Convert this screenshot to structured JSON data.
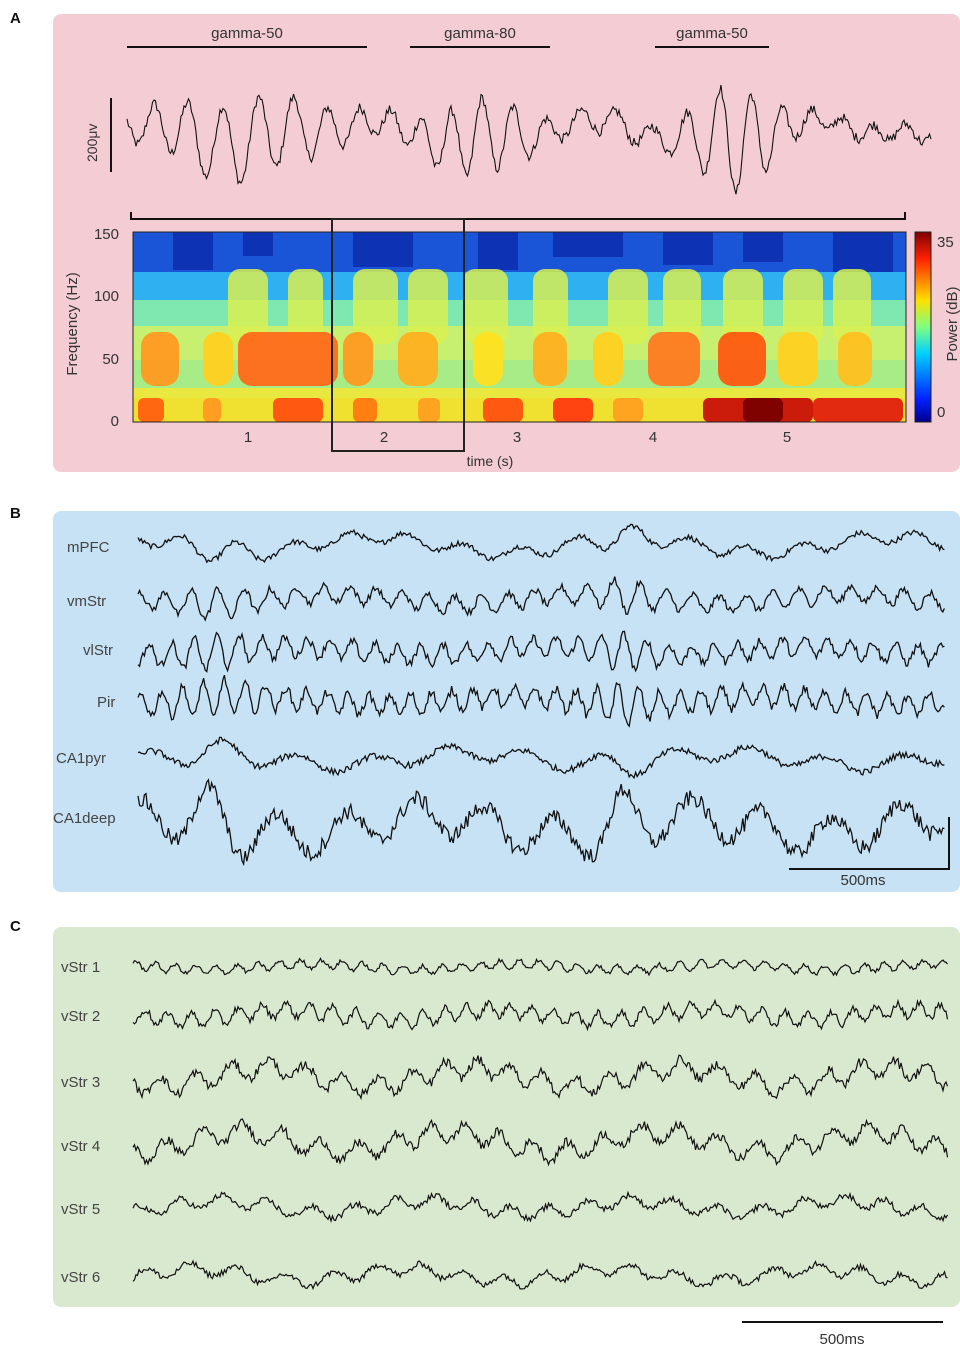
{
  "panel_a": {
    "label": "A",
    "bg": "#f4cdd4",
    "segments": [
      {
        "label": "gamma-50"
      },
      {
        "label": "gamma-80"
      },
      {
        "label": "gamma-50"
      }
    ],
    "scale_label": "200μv",
    "spectrogram": {
      "ylabel": "Frequency (Hz)",
      "xlabel": "time (s)",
      "yticks": [
        "150",
        "100",
        "50",
        "0"
      ],
      "xticks": [
        "1",
        "2",
        "3",
        "4",
        "5"
      ],
      "colorbar_label": "Power (dB)",
      "colorbar_max": "35",
      "colorbar_min": "0"
    }
  },
  "panel_b": {
    "label": "B",
    "bg": "#c7e2f4",
    "channels": [
      "mPFC",
      "vmStr",
      "vlStr",
      "Pir",
      "CA1pyr",
      "CA1deep"
    ],
    "scale_label": "500ms"
  },
  "panel_c": {
    "label": "C",
    "bg": "#d9e9cf",
    "channels": [
      "vStr 1",
      "vStr 2",
      "vStr 3",
      "vStr 4",
      "vStr 5",
      "vStr 6"
    ]
  },
  "bottom_scale_label": "500ms",
  "chart_data": {
    "type": "heatmap",
    "xlabel": "time (s)",
    "ylabel": "Frequency (Hz)",
    "xlim": [
      0.1,
      5.9
    ],
    "ylim": [
      0,
      150
    ],
    "xticks": [
      1,
      2,
      3,
      4,
      5
    ],
    "yticks": [
      0,
      50,
      100,
      150
    ],
    "colorbar": {
      "label": "Power (dB)",
      "range": [
        0,
        35
      ],
      "colormap": "jet"
    },
    "highlight_window_s": [
      1.6,
      2.6
    ]
  }
}
